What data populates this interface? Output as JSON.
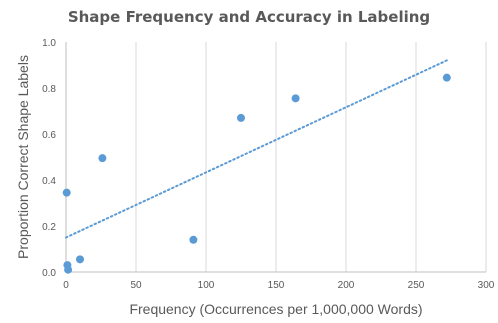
{
  "chart_data": {
    "type": "scatter",
    "title": "Shape Frequency and Accuracy in Labeling",
    "xlabel": "Frequency (Occurrences per 1,000,000 Words)",
    "ylabel": "Proportion Correct Shape Labels",
    "xlim": [
      0,
      300
    ],
    "ylim": [
      0,
      1.0
    ],
    "x_ticks": [
      "0",
      "50",
      "100",
      "150",
      "200",
      "250",
      "300"
    ],
    "y_ticks": [
      "0.0",
      "0.2",
      "0.4",
      "0.6",
      "0.8",
      "1.0"
    ],
    "grid": "vertical",
    "legend": "none",
    "point_color": "#5b9bd5",
    "trendline": {
      "style": "dotted",
      "color": "#5b9bd5",
      "x": [
        0,
        272
      ],
      "y": [
        0.15,
        0.92
      ]
    },
    "points": [
      {
        "x": 0.5,
        "y": 0.345
      },
      {
        "x": 1,
        "y": 0.03
      },
      {
        "x": 1.5,
        "y": 0.01
      },
      {
        "x": 10,
        "y": 0.055
      },
      {
        "x": 26,
        "y": 0.495
      },
      {
        "x": 91,
        "y": 0.14
      },
      {
        "x": 125,
        "y": 0.67
      },
      {
        "x": 164,
        "y": 0.755
      },
      {
        "x": 272,
        "y": 0.845
      }
    ]
  }
}
